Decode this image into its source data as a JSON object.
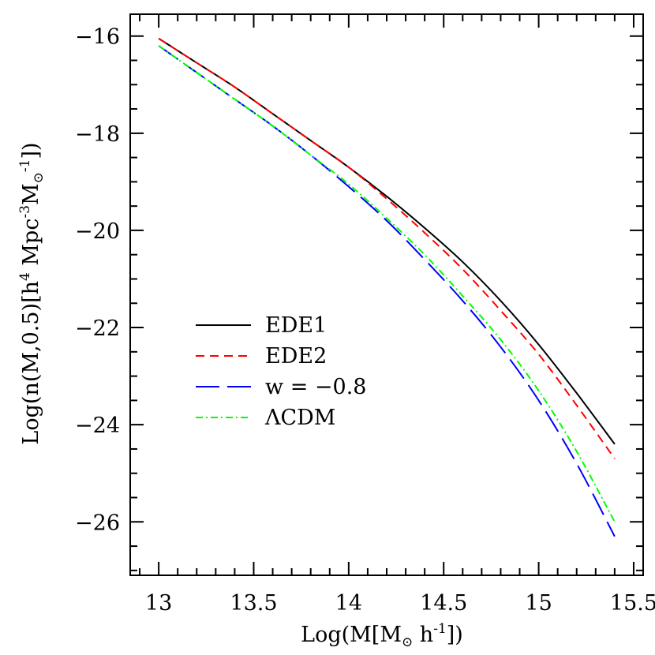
{
  "chart_data": {
    "type": "line",
    "xlabel": {
      "prefix": "Log(M[M",
      "sub": "⊙",
      "suffix": " h",
      "sup": "-1",
      "end": "])"
    },
    "ylabel": {
      "t1": "Log(n(M,0.5)[h",
      "s1": "4",
      "t2": " Mpc",
      "s2": "-3",
      "t3": "M",
      "sub": "⊙",
      "s3": "-1",
      "t4": "])"
    },
    "xlim": [
      12.85,
      15.55
    ],
    "ylim": [
      -27.1,
      -15.55
    ],
    "x_ticks": [
      13,
      13.5,
      14,
      14.5,
      15,
      15.5
    ],
    "x_tick_labels": [
      "13",
      "13.5",
      "14",
      "14.5",
      "15",
      "15.5"
    ],
    "y_ticks": [
      -16,
      -18,
      -20,
      -22,
      -24,
      -26
    ],
    "y_tick_labels": [
      "−16",
      "−18",
      "−20",
      "−22",
      "−24",
      "−26"
    ],
    "grid": false,
    "legend_position": "center-left",
    "x": [
      13.0,
      13.2,
      13.4,
      13.6,
      13.8,
      14.0,
      14.2,
      14.4,
      14.6,
      14.8,
      15.0,
      15.2,
      15.4
    ],
    "series": [
      {
        "name": "EDE1",
        "color": "#000000",
        "dash": "solid",
        "values": [
          -16.05,
          -16.55,
          -17.05,
          -17.6,
          -18.15,
          -18.7,
          -19.3,
          -19.95,
          -20.65,
          -21.45,
          -22.35,
          -23.35,
          -24.4
        ]
      },
      {
        "name": "EDE2",
        "color": "#ff0000",
        "dash": "short-dash",
        "values": [
          -16.05,
          -16.55,
          -17.05,
          -17.6,
          -18.15,
          -18.7,
          -19.35,
          -20.05,
          -20.8,
          -21.65,
          -22.55,
          -23.6,
          -24.7
        ]
      },
      {
        "name": "w = −0.8",
        "color": "#0000ff",
        "dash": "long-dash",
        "values": [
          -16.2,
          -16.75,
          -17.3,
          -17.85,
          -18.45,
          -19.1,
          -19.8,
          -20.6,
          -21.45,
          -22.4,
          -23.5,
          -24.8,
          -26.3
        ]
      },
      {
        "name": "ΛCDM",
        "color": "#00ff00",
        "dash": "dash-dot",
        "values": [
          -16.2,
          -16.75,
          -17.3,
          -17.85,
          -18.45,
          -19.05,
          -19.75,
          -20.5,
          -21.35,
          -22.25,
          -23.3,
          -24.55,
          -26.0
        ]
      }
    ]
  }
}
